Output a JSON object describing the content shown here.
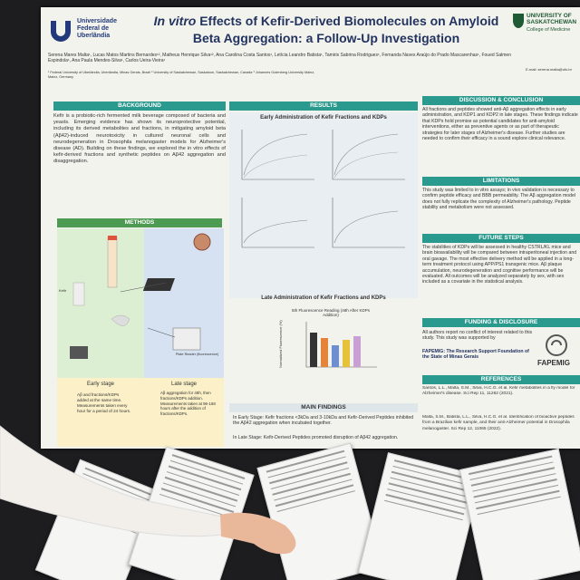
{
  "header": {
    "university_left": "Universidade Federal de Uberlândia",
    "title_italic": "In vitro",
    "title_rest": "Effects of Kefir-Derived Biomolecules on Amyloid Beta Aggregation: a Follow-Up Investigation",
    "university_right": "UNIVERSITY OF SASKATCHEWAN",
    "college": "College of Medicine",
    "authors": "Serena Mares Malta¹, Lucas Matos Martins Bernardes¹², Matheus Henrique Silva¹², Ana Carolina Costa Santos¹, Letícia Leandro Batista¹, Tamiris Sabrina Rodrigues¹, Fernanda Naves Araújo do Prado Mascarenhas¹, Foued Salmen Espindola¹, Ana Paula Mendes-Silva¹, Carlos Ueira-Vieira¹",
    "affiliations": "¹ Federal University of Uberlândia, Uberlândia, Minas Gerais, Brazil  ² University of Saskatchewan, Saskatoon, Saskatchewan, Canada  ³ Johannes Gutenberg University Mainz, Mainz, Germany",
    "email": "E-mail: serena.malta@ufu.br"
  },
  "background": {
    "heading": "BACKGROUND",
    "text": "Kefir is a probiotic-rich fermented milk beverage composed of bacteria and yeasts. Emerging evidence has shown its neuroprotective potential, including its derived metabolites and fractions, in mitigating amyloid beta (Aβ42)-induced neurotoxicity in cultured neuronal cells and neurodegeneration in Drosophila melanogaster models for Alzheimer's disease (AD). Building on these findings, we explored the in vitro effects of kefir-derived fractions and synthetic peptides on Aβ42 aggregation and disaggregation."
  },
  "methods": {
    "heading": "METHODS",
    "early_title": "Early stage",
    "early_text": "Aβ and fractions/KDPs added at the same time. Measurements taken every hour for a period of 24 hours.",
    "late_title": "Late stage",
    "late_text": "Aβ aggregation for 48h, then fractions/KDPs addition. Measurements taken at 96-168 hours after the addition of fractions/KDPs.",
    "kefir": "Kefir",
    "plate_reader": "Plate Reader (fluorescence)"
  },
  "results": {
    "heading": "RESULTS",
    "early_title": "Early Administration of Kefir Fractions and KDPs",
    "late_title": "Late Administration of Kefir Fractions and KDPs",
    "chart_title": "5th Fluorescence Reading (48h After KDPs Addition)",
    "chart_ylabel": "Normalized Fluorescence (%)",
    "findings_heading": "MAIN FINDINGS",
    "findings_1": "In Early Stage: Kefir fractions <3kDa and 3-10kDa and Kefir-Derived Peptides inhibited the Aβ42 aggregation when incubated together.",
    "findings_2": "In Late Stage: Kefir-Derived Peptides promoted disruption of Aβ42 aggregation."
  },
  "discussion": {
    "heading": "DISCUSSION & CONCLUSION",
    "text": "All fractions and peptides showed anti-Aβ aggregation effects in early administration, and KDP1 and KDP2 in late stages. These findings indicate that KDPs hold promise as potential candidates for anti-amyloid interventions, either as preventive agents or as part of therapeutic strategies for later stages of Alzheimer's disease. Further studies are needed to confirm their efficacy in a sound explore clinical relevance."
  },
  "limitations": {
    "heading": "LIMITATIONS",
    "text": "This study was limited to in vitro assays; in vivo validation is necessary to confirm peptide efficacy and BBB permeability. The Aβ aggregation model does not fully replicate the complexity of Alzheimer's pathology. Peptide stability and metabolism were not assessed."
  },
  "future": {
    "heading": "FUTURE STEPS",
    "text": "The stabilities of KDPs will be assessed in healthy CSTRL/KL mice and brain bioavailability will be compared between intraperitoneal injection and oral gavage. The most effective delivery method will be applied in a long-term treatment protocol using APP/PS1 transgenic mice. Aβ plaque accumulation, neurodegeneration and cognitive performance will be evaluated. All outcomes will be analyzed separately by sex, with sex included as a covariate in the statistical analysis."
  },
  "funding": {
    "heading": "FUNDING & DISCLOSURE",
    "text": "All authors report no conflict of interest related to this study. This study was supported by",
    "funder": "FAPEMIG: The Research Support Foundation of the State of Minas Gerais",
    "logo": "FAPEMIG"
  },
  "references": {
    "heading": "REFERENCES",
    "ref_1": "Santos, L.L., Malta, S.M., Silva, H.C.G. et al. Kefir metabolites in a fly model for Alzheimer's disease. Sci Rep 11, 11262 (2021).",
    "ref_2": "Malta, S.M., Batista, L.L., Silva, H.C.G. et al. Identification of bioactive peptides from a Brazilian kefir sample, and their anti-Alzheimer potential in Drosophila melanogaster. Sci Rep 12, 11065 (2022)."
  }
}
